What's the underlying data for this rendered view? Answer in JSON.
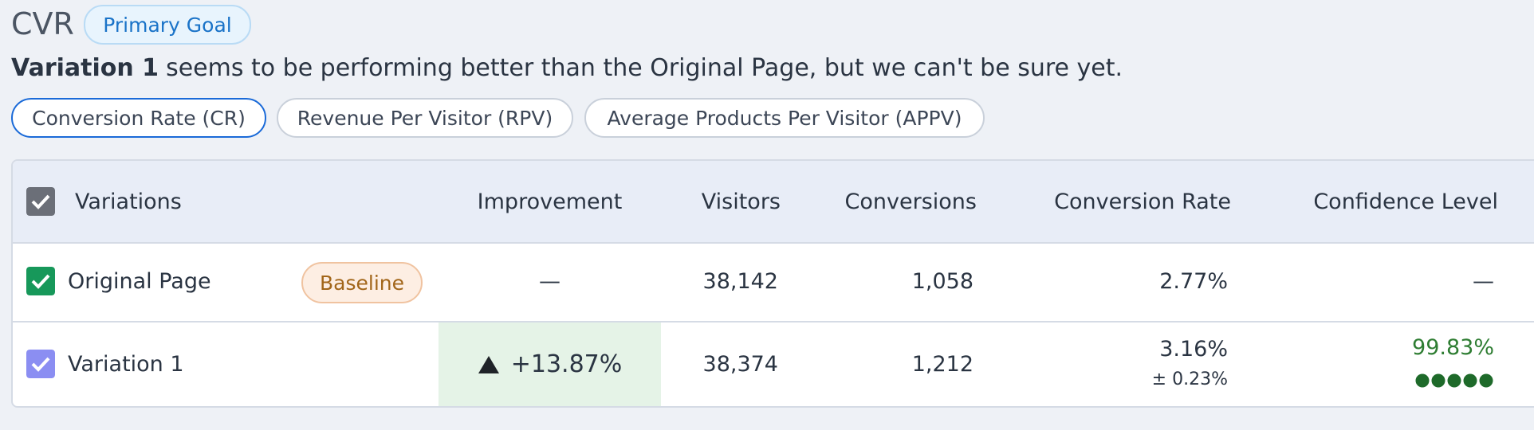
{
  "header": {
    "title": "CVR",
    "badge": "Primary Goal"
  },
  "summary": {
    "emphasis": "Variation 1",
    "text": "seems to be performing better than the Original Page, but we can't be sure yet."
  },
  "tabs": [
    "Conversion Rate (CR)",
    "Revenue Per Visitor (RPV)",
    "Average Products Per Visitor (APPV)"
  ],
  "table": {
    "columns": [
      "Variations",
      "Improvement",
      "Visitors",
      "Conversions",
      "Conversion Rate",
      "Confidence Level"
    ],
    "rows": [
      {
        "name": "Original Page",
        "badge": "Baseline",
        "improvement": "—",
        "visitors": "38,142",
        "conversions": "1,058",
        "conversion_rate": "2.77%",
        "confidence": "—"
      },
      {
        "name": "Variation 1",
        "improvement": "+13.87%",
        "visitors": "38,374",
        "conversions": "1,212",
        "conversion_rate": "3.16%",
        "margin": "± 0.23%",
        "confidence": "99.83%"
      }
    ]
  }
}
